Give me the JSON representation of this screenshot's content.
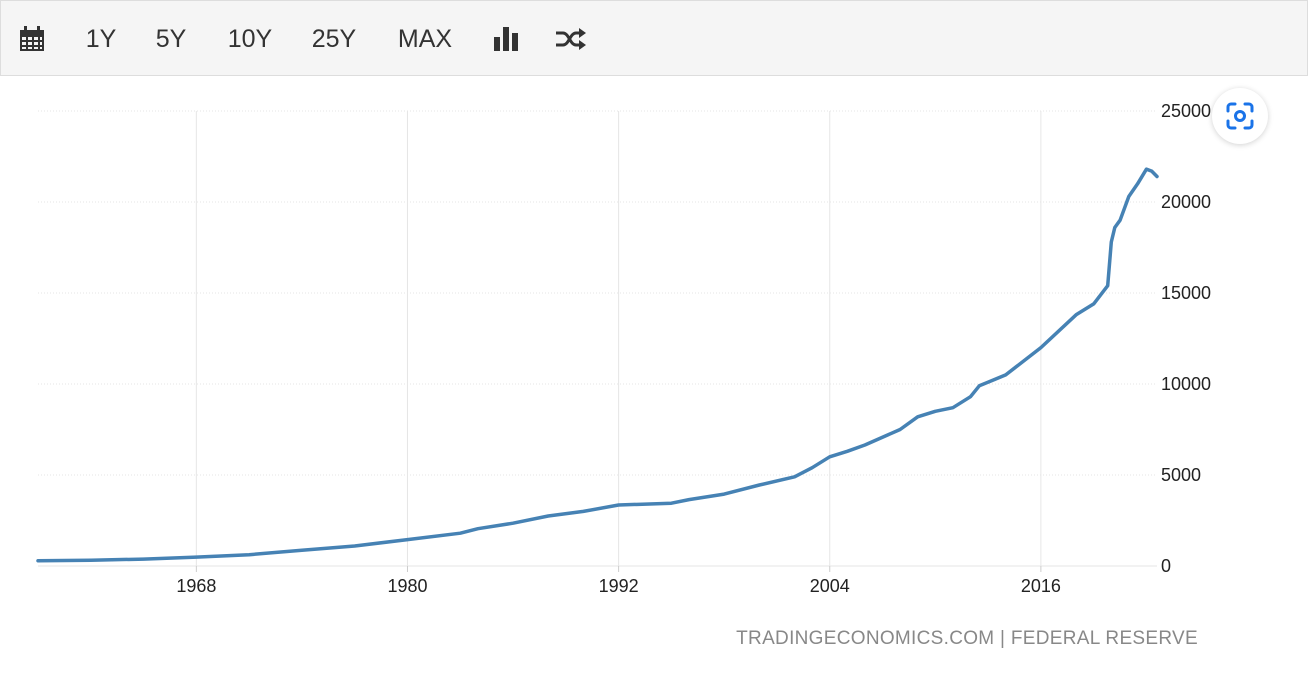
{
  "toolbar": {
    "items": [
      {
        "name": "calendar-icon",
        "label": ""
      },
      {
        "name": "range-1y-button",
        "label": "1Y"
      },
      {
        "name": "range-5y-button",
        "label": "5Y"
      },
      {
        "name": "range-10y-button",
        "label": "10Y"
      },
      {
        "name": "range-25y-button",
        "label": "25Y"
      },
      {
        "name": "range-max-button",
        "label": "MAX"
      },
      {
        "name": "bar-chart-icon",
        "label": ""
      },
      {
        "name": "shuffle-icon",
        "label": ""
      }
    ]
  },
  "colors": {
    "line": "#4682b4",
    "grid": "#e6e6e6",
    "toolbar_bg": "#f5f5f5",
    "accent_icon": "#1a73e8"
  },
  "chart_data": {
    "type": "line",
    "title": "",
    "xlabel": "",
    "ylabel": "",
    "xlim": [
      1959.0,
      2022.6
    ],
    "ylim": [
      0,
      25000
    ],
    "x_ticks": [
      1968,
      1980,
      1992,
      2004,
      2016
    ],
    "y_ticks": [
      0,
      5000,
      10000,
      15000,
      20000,
      25000
    ],
    "grid": true,
    "legend": "none",
    "series": [
      {
        "x": [
          1959,
          1962,
          1965,
          1968,
          1971,
          1974,
          1977,
          1980,
          1983,
          1984,
          1986,
          1988,
          1990,
          1992,
          1995,
          1996,
          1998,
          2000,
          2002,
          2003,
          2004,
          2005,
          2006,
          2008,
          2009,
          2010,
          2011,
          2012,
          2012.5,
          2014,
          2016,
          2018,
          2019,
          2019.8,
          2020.0,
          2020.2,
          2020.5,
          2021,
          2021.5,
          2022.0,
          2022.3,
          2022.6
        ],
        "y": [
          290,
          320,
          380,
          490,
          620,
          860,
          1100,
          1450,
          1800,
          2050,
          2350,
          2750,
          3000,
          3350,
          3450,
          3650,
          3950,
          4450,
          4900,
          5400,
          6000,
          6300,
          6650,
          7500,
          8200,
          8500,
          8700,
          9300,
          9900,
          10500,
          12000,
          13800,
          14400,
          15400,
          17800,
          18600,
          19000,
          20300,
          21000,
          21800,
          21700,
          21400
        ]
      }
    ]
  },
  "footer": {
    "source_text": "TRADINGECONOMICS.COM | FEDERAL RESERVE"
  }
}
